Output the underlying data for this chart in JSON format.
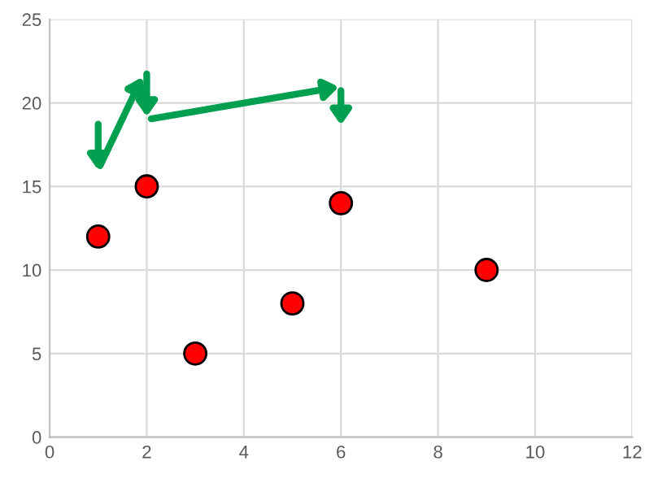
{
  "chart_data": {
    "type": "scatter",
    "x": [
      1,
      2,
      3,
      5,
      6,
      9
    ],
    "values": [
      12,
      15,
      5,
      8,
      14,
      10
    ],
    "color": "#ff0000",
    "marker": "circle",
    "xlim": [
      0,
      12
    ],
    "xticks": [
      0,
      2,
      4,
      6,
      8,
      10,
      12
    ],
    "ylim": [
      0,
      25
    ],
    "yticks": [
      0,
      5,
      10,
      15,
      20,
      25
    ],
    "grid": true
  }
}
